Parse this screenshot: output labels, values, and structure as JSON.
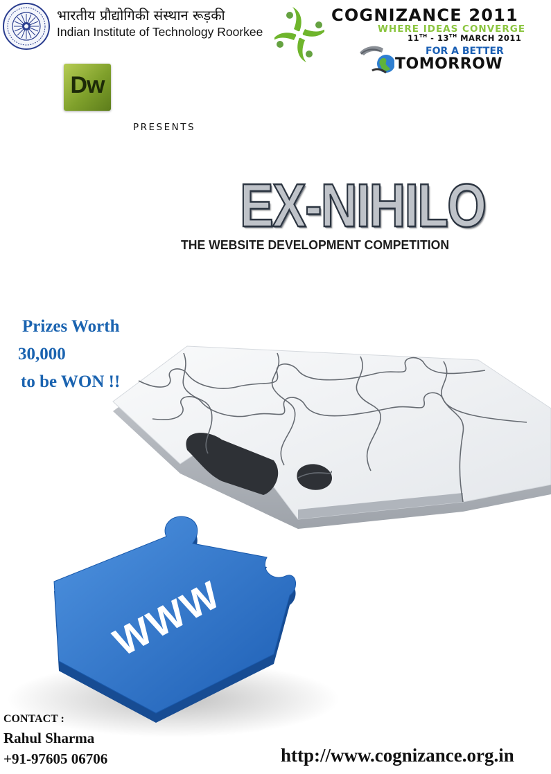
{
  "header": {
    "institute_hindi": "भारतीय प्रौद्योगिकी संस्थान रूड़की",
    "institute_english": "Indian Institute of Technology Roorkee",
    "fest_name": "COGNIZANCE 2011",
    "fest_tagline": "WHERE IDEAS CONVERGE",
    "date_start_day": "11",
    "date_start_suffix": "TH",
    "date_separator": " - ",
    "date_end_day": "13",
    "date_end_suffix": "TH",
    "date_month_year": " MARCH 2011",
    "slogan_line1": "FOR A BETTER",
    "slogan_line2": "TOMORROW"
  },
  "sponsor": {
    "logo_text": "Dw",
    "presents_label": "PRESENTS"
  },
  "event": {
    "title": "EX-NIHILO",
    "subtitle": "THE WEBSITE DEVELOPMENT COMPETITION"
  },
  "prizes": {
    "line1": "Prizes Worth",
    "line2": "30,000",
    "line3": "to be WON !!"
  },
  "puzzle": {
    "piece_label": "WWW",
    "piece_color": "#2e74c9",
    "board_color": "#eef0f3"
  },
  "contact": {
    "label": "CONTACT :",
    "name": "Rahul Sharma",
    "phone": "+91-97605 06706"
  },
  "website": "http://www.cognizance.org.in",
  "colors": {
    "prize_blue": "#1a63b0",
    "tagline_green": "#8bc53f",
    "slogan_blue": "#1a5fb4"
  },
  "icons": [
    "iitr-seal-icon",
    "cognizance-logo-icon",
    "dreamweaver-icon",
    "globe-icon"
  ]
}
